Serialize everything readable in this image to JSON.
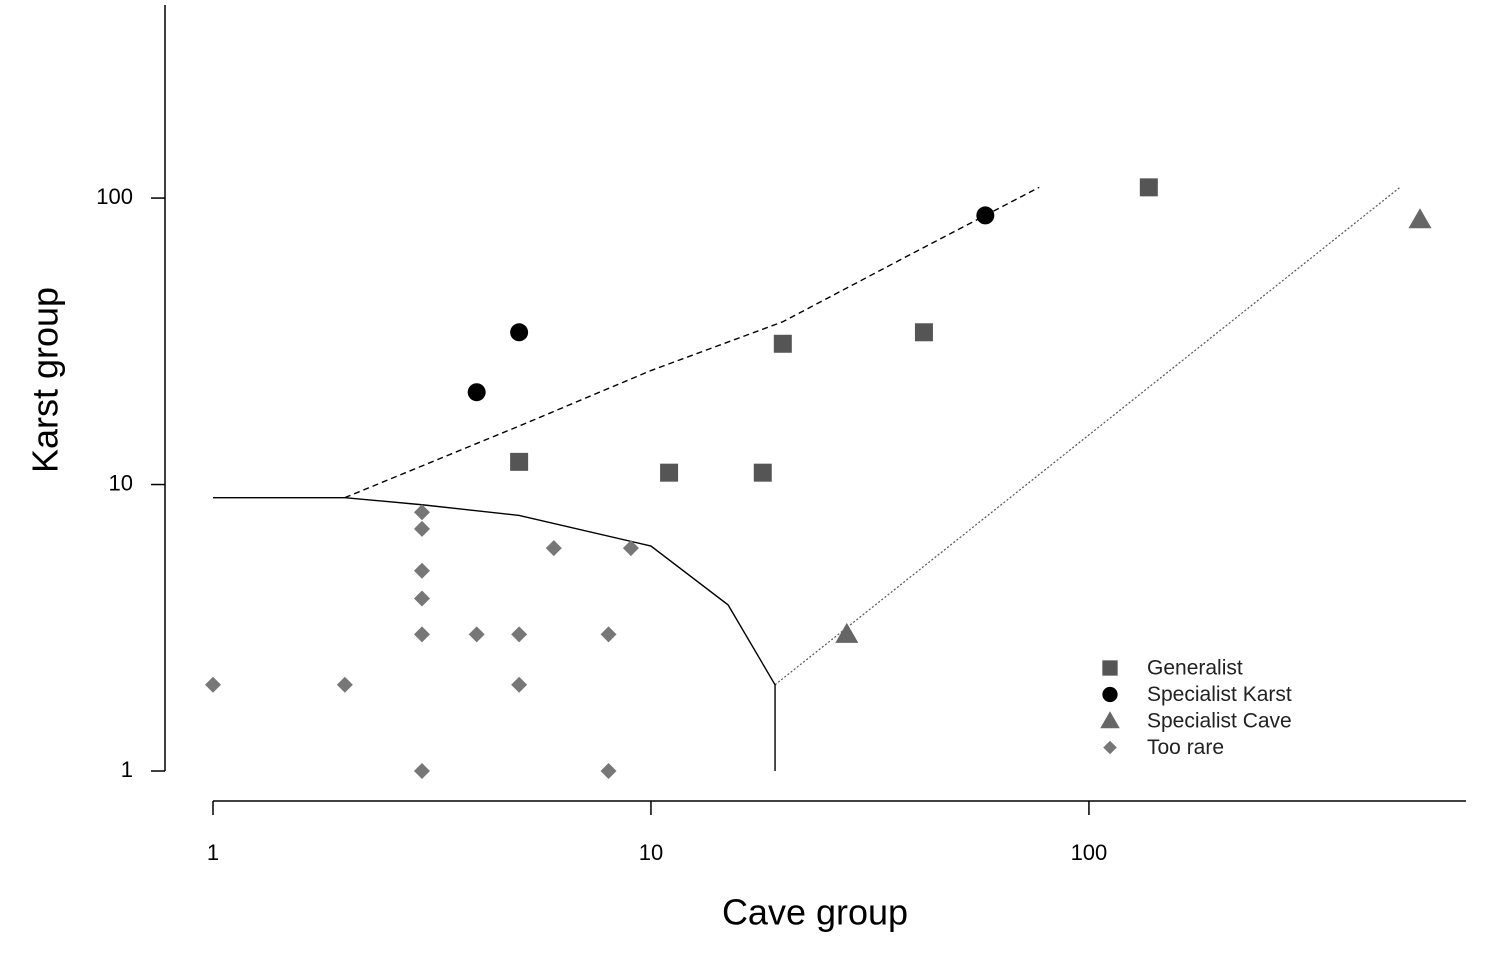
{
  "chart_data": {
    "type": "scatter",
    "xlabel": "Cave group",
    "ylabel": "Karst group",
    "xscale": "log",
    "yscale": "log",
    "xlim": [
      1,
      726
    ],
    "ylim": [
      1,
      472
    ],
    "xticks": [
      1,
      10,
      100
    ],
    "yticks": [
      1,
      10,
      100
    ],
    "legend": "bottom-right",
    "series": [
      {
        "name": "Generalist",
        "marker": "square",
        "color": "#555555",
        "x": [
          5,
          11,
          18,
          20,
          42,
          137
        ],
        "values": [
          12,
          11,
          11,
          31,
          34,
          109
        ]
      },
      {
        "name": "Specialist Karst",
        "marker": "circle",
        "color": "#000000",
        "x": [
          4,
          5,
          58
        ],
        "values": [
          21,
          34,
          87
        ]
      },
      {
        "name": "Specialist Cave",
        "marker": "triangle",
        "color": "#666666",
        "x": [
          28,
          570
        ],
        "values": [
          3,
          84
        ]
      },
      {
        "name": "Too rare",
        "marker": "diamond",
        "color": "#777777",
        "x": [
          1,
          2,
          3,
          3,
          3,
          3,
          3,
          3,
          4,
          5,
          5,
          6,
          8,
          8,
          9
        ],
        "values": [
          2,
          2,
          8,
          7,
          5,
          4,
          3,
          1,
          3,
          3,
          2,
          6,
          3,
          1,
          6
        ]
      }
    ],
    "curves": [
      {
        "style": "dashed",
        "x": [
          2,
          5,
          10,
          20,
          41,
          77
        ],
        "y": [
          9,
          16,
          25,
          37,
          66,
          109
        ]
      },
      {
        "style": "dotted",
        "x": [
          19.2,
          513
        ],
        "y": [
          2,
          109
        ]
      },
      {
        "style": "solid",
        "x": [
          1,
          2,
          3,
          5,
          10,
          15,
          19.2,
          19.2
        ],
        "y": [
          9,
          9,
          8.5,
          7.8,
          6.1,
          3.8,
          2,
          1
        ]
      }
    ]
  }
}
